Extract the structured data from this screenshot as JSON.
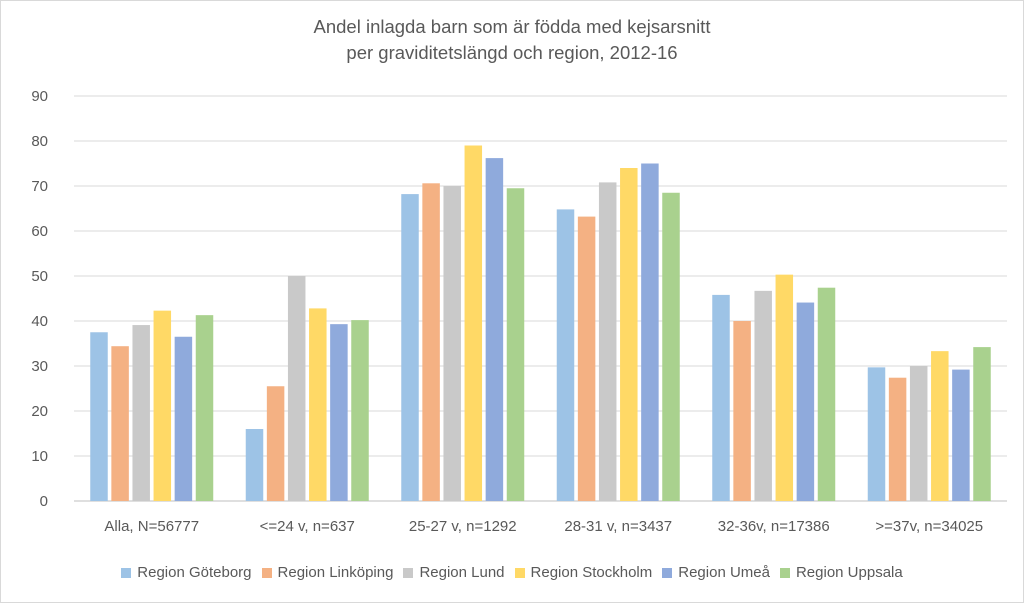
{
  "chart_data": {
    "type": "bar",
    "title": "Andel inlagda barn som är födda med kejsarsnitt",
    "subtitle": "per graviditetslängd och region, 2012-16",
    "xlabel": "",
    "ylabel": "",
    "ylim": [
      0,
      90
    ],
    "yticks": [
      0,
      10,
      20,
      30,
      40,
      50,
      60,
      70,
      80,
      90
    ],
    "grid": true,
    "legend_position": "bottom",
    "categories": [
      "Alla, N=56777",
      "<=24 v, n=637",
      "25-27 v, n=1292",
      "28-31 v, n=3437",
      "32-36v, n=17386",
      ">=37v, n=34025"
    ],
    "series": [
      {
        "name": "Region Göteborg",
        "color": "#9dc3e6",
        "values": [
          37.5,
          16,
          68.2,
          64.8,
          45.8,
          29.7
        ]
      },
      {
        "name": "Region Linköping",
        "color": "#f4b183",
        "values": [
          34.4,
          25.5,
          70.6,
          63.2,
          40,
          27.4
        ]
      },
      {
        "name": "Region Lund",
        "color": "#c9c9c9",
        "values": [
          39.1,
          50,
          70,
          70.8,
          46.7,
          30
        ]
      },
      {
        "name": "Region Stockholm",
        "color": "#ffd966",
        "values": [
          42.3,
          42.8,
          79,
          74,
          50.3,
          33.3
        ]
      },
      {
        "name": "Region Umeå",
        "color": "#8faadc",
        "values": [
          36.5,
          39.3,
          76.2,
          75,
          44.1,
          29.2
        ]
      },
      {
        "name": "Region Uppsala",
        "color": "#a9d18e",
        "values": [
          41.3,
          40.2,
          69.5,
          68.5,
          47.4,
          34.2
        ]
      }
    ]
  }
}
